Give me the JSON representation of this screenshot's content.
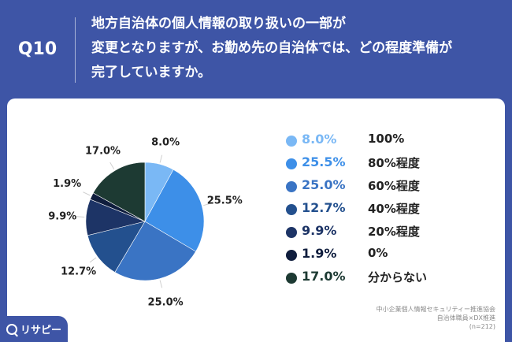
{
  "question": {
    "number": "Q10",
    "lines": [
      "地方自治体の個人情報の取り扱いの一部が",
      "変更となりますが、お勤め先の自治体では、どの程度準備が",
      "完了していますか。"
    ]
  },
  "chart_data": {
    "type": "pie",
    "start_angle_deg": 0,
    "direction": "clockwise",
    "slices": [
      {
        "label": "100%",
        "value": 8.0,
        "display": "8.0%",
        "color": "#7ab8f5"
      },
      {
        "label": "80%程度",
        "value": 25.5,
        "display": "25.5%",
        "color": "#3d8fe8"
      },
      {
        "label": "60%程度",
        "value": 25.0,
        "display": "25.0%",
        "color": "#3a74c4"
      },
      {
        "label": "40%程度",
        "value": 12.7,
        "display": "12.7%",
        "color": "#23508e"
      },
      {
        "label": "20%程度",
        "value": 9.9,
        "display": "9.9%",
        "color": "#1d3466"
      },
      {
        "label": "0%",
        "value": 1.9,
        "display": "1.9%",
        "color": "#0f1d3d"
      },
      {
        "label": "分からない",
        "value": 17.0,
        "display": "17.0%",
        "color": "#1d3a33"
      }
    ]
  },
  "source": {
    "lines": [
      "中小企業個人情報セキュリティー推進協会",
      "自治体職員×DX推進",
      "(n=212)"
    ]
  },
  "logo": {
    "text": "リサピー",
    "icon": "search-icon"
  }
}
